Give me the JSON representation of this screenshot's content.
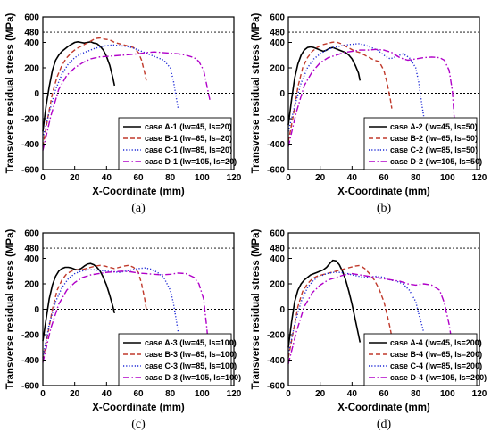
{
  "chart_data": [
    {
      "type": "line",
      "panel_label": "(a)",
      "xlabel": "X-Coordinate (mm)",
      "ylabel": "Transverse residual stress (MPa)",
      "xlim": [
        0,
        120
      ],
      "ylim": [
        -600,
        600
      ],
      "xticks": [
        "0",
        "20",
        "40",
        "60",
        "80",
        "100",
        "120"
      ],
      "yticks": [
        "-600",
        "-400",
        "-200",
        "0",
        "200",
        "400",
        "600"
      ],
      "extra_ytick": "480",
      "reference_lines": [
        480,
        0
      ],
      "legend": {
        "position": "lower-right"
      },
      "series": [
        {
          "name": "case A-1 (lw=45, ls=20)",
          "color": "#000000",
          "dash": "solid",
          "x": [
            0,
            2,
            4,
            6,
            8,
            10,
            12,
            14,
            16,
            18,
            20,
            22,
            24,
            26,
            28,
            30,
            32,
            34,
            36,
            38,
            40,
            42,
            44,
            45
          ],
          "y": [
            -300,
            -100,
            50,
            180,
            260,
            300,
            330,
            350,
            370,
            385,
            400,
            405,
            400,
            395,
            400,
            405,
            395,
            390,
            370,
            340,
            290,
            220,
            120,
            60
          ]
        },
        {
          "name": "case B-1 (lw=65, ls=20)",
          "color": "#c0392b",
          "dash": "dashed",
          "x": [
            0,
            3,
            6,
            9,
            12,
            15,
            18,
            21,
            24,
            27,
            30,
            33,
            36,
            39,
            42,
            45,
            48,
            51,
            54,
            57,
            60,
            62,
            64,
            65
          ],
          "y": [
            -420,
            -200,
            0,
            130,
            220,
            280,
            320,
            350,
            370,
            390,
            410,
            430,
            435,
            425,
            420,
            400,
            390,
            380,
            370,
            360,
            320,
            260,
            160,
            100
          ]
        },
        {
          "name": "case C-1 (lw=85, ls=20)",
          "color": "#1f2bd6",
          "dash": "dotted",
          "x": [
            0,
            4,
            8,
            12,
            16,
            20,
            24,
            28,
            32,
            36,
            40,
            44,
            48,
            52,
            56,
            60,
            64,
            68,
            72,
            76,
            80,
            82,
            84,
            85
          ],
          "y": [
            -350,
            -150,
            30,
            150,
            230,
            280,
            310,
            330,
            350,
            365,
            375,
            380,
            375,
            370,
            360,
            340,
            320,
            300,
            280,
            260,
            200,
            100,
            -50,
            -120
          ]
        },
        {
          "name": "case D-1 (lw=105, ls=20)",
          "color": "#b000c8",
          "dash": "dashdot",
          "x": [
            0,
            5,
            10,
            15,
            20,
            25,
            30,
            35,
            40,
            45,
            50,
            55,
            60,
            65,
            70,
            75,
            80,
            85,
            90,
            95,
            98,
            101,
            103,
            105
          ],
          "y": [
            -450,
            -180,
            30,
            140,
            200,
            240,
            270,
            285,
            290,
            295,
            300,
            305,
            310,
            320,
            325,
            320,
            315,
            310,
            300,
            280,
            250,
            180,
            60,
            -60
          ]
        }
      ]
    },
    {
      "type": "line",
      "panel_label": "(b)",
      "xlabel": "X-Coordinate (mm)",
      "ylabel": "Transverse residual stress (MPa)",
      "xlim": [
        0,
        120
      ],
      "ylim": [
        -600,
        600
      ],
      "xticks": [
        "0",
        "20",
        "40",
        "60",
        "80",
        "100",
        "120"
      ],
      "yticks": [
        "-600",
        "-400",
        "-200",
        "0",
        "200",
        "400",
        "600"
      ],
      "extra_ytick": "480",
      "reference_lines": [
        480,
        0
      ],
      "legend": {
        "position": "lower-right"
      },
      "series": [
        {
          "name": "case A-2 (lw=45, ls=50)",
          "color": "#000000",
          "dash": "solid",
          "x": [
            0,
            2,
            4,
            6,
            8,
            10,
            12,
            14,
            16,
            18,
            20,
            22,
            24,
            26,
            28,
            30,
            32,
            34,
            36,
            38,
            40,
            42,
            44,
            45
          ],
          "y": [
            -250,
            -50,
            120,
            230,
            300,
            340,
            360,
            365,
            360,
            350,
            340,
            330,
            340,
            355,
            360,
            350,
            340,
            330,
            320,
            300,
            270,
            220,
            160,
            100
          ]
        },
        {
          "name": "case B-2 (lw=65, ls=50)",
          "color": "#c0392b",
          "dash": "dashed",
          "x": [
            0,
            3,
            6,
            9,
            12,
            15,
            18,
            21,
            24,
            27,
            30,
            33,
            36,
            39,
            42,
            45,
            48,
            51,
            54,
            57,
            60,
            62,
            64,
            65
          ],
          "y": [
            -380,
            -180,
            50,
            200,
            280,
            330,
            360,
            380,
            390,
            400,
            405,
            390,
            370,
            350,
            330,
            320,
            300,
            280,
            260,
            250,
            180,
            80,
            -40,
            -120
          ]
        },
        {
          "name": "case C-2 (lw=85, ls=50)",
          "color": "#1f2bd6",
          "dash": "dotted",
          "x": [
            0,
            4,
            8,
            12,
            16,
            20,
            24,
            28,
            32,
            36,
            40,
            44,
            48,
            52,
            56,
            60,
            64,
            68,
            72,
            76,
            80,
            82,
            84,
            85
          ],
          "y": [
            -300,
            -100,
            80,
            200,
            270,
            310,
            340,
            360,
            370,
            380,
            385,
            390,
            380,
            360,
            340,
            300,
            270,
            290,
            310,
            280,
            200,
            80,
            -100,
            -180
          ]
        },
        {
          "name": "case D-2 (lw=105, ls=50)",
          "color": "#b000c8",
          "dash": "dashdot",
          "x": [
            0,
            5,
            10,
            15,
            20,
            25,
            30,
            35,
            40,
            45,
            50,
            55,
            60,
            65,
            70,
            75,
            80,
            85,
            90,
            95,
            98,
            101,
            103,
            105
          ],
          "y": [
            -420,
            -150,
            60,
            170,
            240,
            280,
            300,
            320,
            330,
            340,
            340,
            345,
            340,
            320,
            280,
            260,
            270,
            280,
            285,
            280,
            260,
            180,
            20,
            -350
          ]
        }
      ]
    },
    {
      "type": "line",
      "panel_label": "(c)",
      "xlabel": "X-Coordinate (mm)",
      "ylabel": "Transverse residual stress (MPa)",
      "xlim": [
        0,
        120
      ],
      "ylim": [
        -600,
        600
      ],
      "xticks": [
        "0",
        "20",
        "40",
        "60",
        "80",
        "100",
        "120"
      ],
      "yticks": [
        "-600",
        "-400",
        "-200",
        "0",
        "200",
        "400",
        "600"
      ],
      "extra_ytick": "480",
      "reference_lines": [
        480,
        0
      ],
      "legend": {
        "position": "lower-right"
      },
      "series": [
        {
          "name": "case A-3 (lw=45, ls=100)",
          "color": "#000000",
          "dash": "solid",
          "x": [
            0,
            2,
            4,
            6,
            8,
            10,
            12,
            14,
            16,
            18,
            20,
            22,
            24,
            26,
            28,
            30,
            32,
            34,
            36,
            38,
            40,
            42,
            44,
            45
          ],
          "y": [
            -250,
            -80,
            80,
            190,
            260,
            300,
            320,
            330,
            330,
            325,
            315,
            310,
            320,
            340,
            355,
            360,
            350,
            330,
            300,
            250,
            190,
            110,
            20,
            -30
          ]
        },
        {
          "name": "case B-3 (lw=65, ls=100)",
          "color": "#c0392b",
          "dash": "dashed",
          "x": [
            0,
            3,
            6,
            9,
            12,
            15,
            18,
            21,
            24,
            27,
            30,
            33,
            36,
            39,
            42,
            45,
            48,
            51,
            54,
            57,
            60,
            62,
            64,
            65
          ],
          "y": [
            -400,
            -200,
            0,
            150,
            230,
            280,
            300,
            310,
            310,
            320,
            330,
            340,
            345,
            340,
            330,
            320,
            330,
            340,
            345,
            330,
            290,
            200,
            80,
            0
          ]
        },
        {
          "name": "case C-3 (lw=85, ls=100)",
          "color": "#1f2bd6",
          "dash": "dotted",
          "x": [
            0,
            4,
            8,
            12,
            16,
            20,
            24,
            28,
            32,
            36,
            40,
            44,
            48,
            52,
            56,
            60,
            64,
            68,
            72,
            76,
            80,
            82,
            84,
            85
          ],
          "y": [
            -380,
            -120,
            60,
            170,
            240,
            280,
            300,
            310,
            310,
            305,
            300,
            295,
            290,
            300,
            310,
            320,
            325,
            315,
            290,
            250,
            150,
            50,
            -100,
            -180
          ]
        },
        {
          "name": "case D-3 (lw=105, ls=100)",
          "color": "#b000c8",
          "dash": "dashdot",
          "x": [
            0,
            5,
            10,
            15,
            20,
            25,
            30,
            35,
            40,
            45,
            50,
            55,
            60,
            65,
            70,
            75,
            80,
            85,
            90,
            95,
            98,
            101,
            103,
            105
          ],
          "y": [
            -420,
            -150,
            40,
            150,
            210,
            250,
            270,
            280,
            290,
            295,
            300,
            295,
            285,
            280,
            275,
            270,
            275,
            285,
            280,
            250,
            200,
            80,
            -150,
            -430
          ]
        }
      ]
    },
    {
      "type": "line",
      "panel_label": "(d)",
      "xlabel": "X-Coordinate (mm)",
      "ylabel": "Transverse residual stress (MPa)",
      "xlim": [
        0,
        120
      ],
      "ylim": [
        -600,
        600
      ],
      "xticks": [
        "0",
        "20",
        "40",
        "60",
        "80",
        "100",
        "120"
      ],
      "yticks": [
        "-600",
        "-400",
        "-200",
        "0",
        "200",
        "400",
        "600"
      ],
      "extra_ytick": "480",
      "reference_lines": [
        480,
        0
      ],
      "legend": {
        "position": "lower-right"
      },
      "series": [
        {
          "name": "case A-4 (lw=45, ls=200)",
          "color": "#000000",
          "dash": "solid",
          "x": [
            0,
            2,
            4,
            6,
            8,
            10,
            12,
            14,
            16,
            18,
            20,
            22,
            24,
            26,
            28,
            30,
            32,
            34,
            36,
            38,
            40,
            42,
            44,
            45
          ],
          "y": [
            -300,
            -100,
            60,
            150,
            200,
            230,
            250,
            270,
            280,
            290,
            300,
            310,
            330,
            360,
            385,
            380,
            350,
            300,
            230,
            140,
            40,
            -80,
            -200,
            -260
          ]
        },
        {
          "name": "case B-4 (lw=65, ls=200)",
          "color": "#c0392b",
          "dash": "dashed",
          "x": [
            0,
            3,
            6,
            9,
            12,
            15,
            18,
            21,
            24,
            27,
            30,
            33,
            36,
            39,
            42,
            45,
            48,
            51,
            54,
            57,
            60,
            62,
            64,
            65
          ],
          "y": [
            -380,
            -180,
            20,
            140,
            200,
            240,
            260,
            270,
            280,
            290,
            300,
            310,
            320,
            330,
            340,
            345,
            320,
            280,
            230,
            160,
            60,
            -40,
            -150,
            -220
          ]
        },
        {
          "name": "case C-4 (lw=85, ls=200)",
          "color": "#1f2bd6",
          "dash": "dotted",
          "x": [
            0,
            4,
            8,
            12,
            16,
            20,
            24,
            28,
            32,
            36,
            40,
            44,
            48,
            52,
            56,
            60,
            64,
            68,
            72,
            76,
            80,
            82,
            84,
            85
          ],
          "y": [
            -350,
            -120,
            60,
            170,
            230,
            260,
            280,
            290,
            290,
            285,
            270,
            260,
            250,
            255,
            260,
            250,
            230,
            220,
            200,
            150,
            60,
            -40,
            -130,
            -180
          ]
        },
        {
          "name": "case D-4 (lw=105, ls=200)",
          "color": "#b000c8",
          "dash": "dashdot",
          "x": [
            0,
            5,
            10,
            15,
            20,
            25,
            30,
            35,
            40,
            45,
            50,
            55,
            60,
            65,
            70,
            75,
            80,
            85,
            90,
            95,
            98,
            101,
            103,
            105
          ],
          "y": [
            -430,
            -180,
            20,
            130,
            190,
            230,
            250,
            270,
            280,
            270,
            260,
            250,
            240,
            230,
            220,
            200,
            190,
            200,
            190,
            150,
            50,
            -120,
            -280,
            -430
          ]
        }
      ]
    }
  ]
}
